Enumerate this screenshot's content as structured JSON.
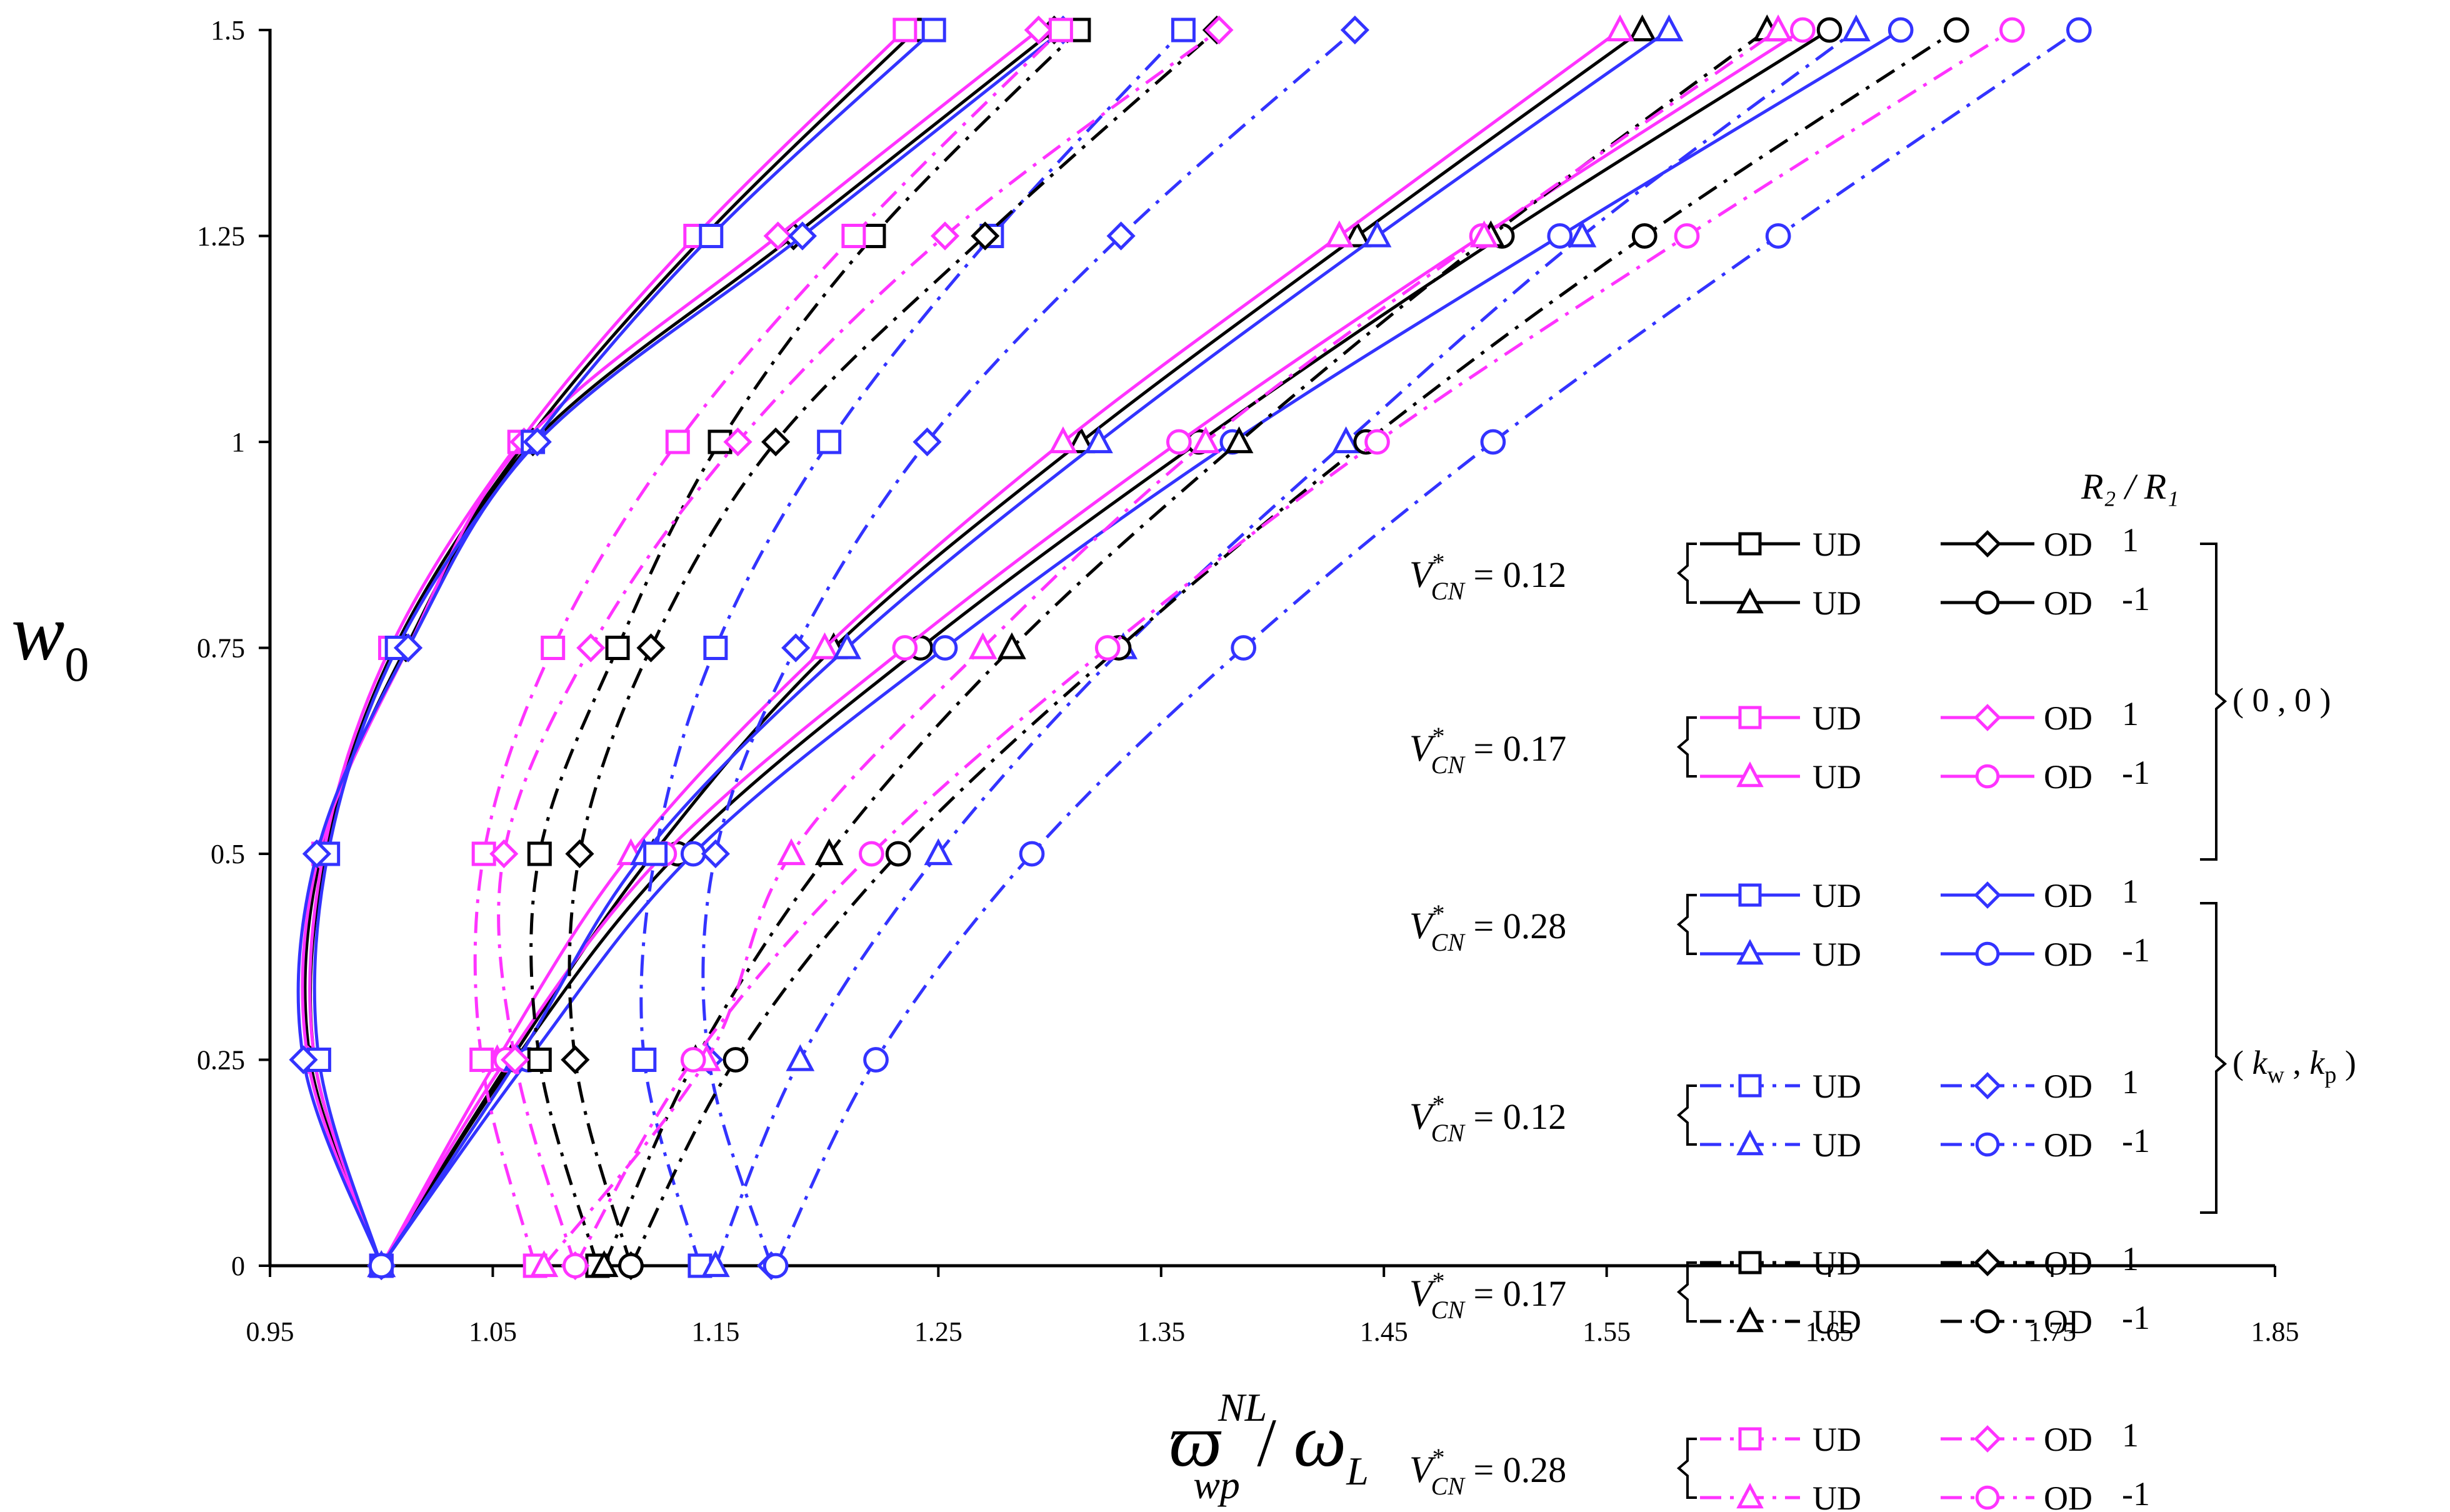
{
  "chart_data": {
    "type": "line",
    "xlabel": "ϖ_wp^NL / ω_L",
    "xlabel_parts": {
      "main": "ϖ",
      "sup": "NL",
      "sub": "wp",
      "sep": "/",
      "den": "ω",
      "den_sub": "L"
    },
    "ylabel": "w_0",
    "ylabel_parts": {
      "main": "w",
      "sub": "0"
    },
    "xlim": [
      0.95,
      1.85
    ],
    "ylim": [
      0,
      1.5
    ],
    "x_ticks": [
      "0.95",
      "1.05",
      "1.15",
      "1.25",
      "1.35",
      "1.45",
      "1.55",
      "1.65",
      "1.75",
      "1.85"
    ],
    "y_ticks": [
      "0",
      "0.25",
      "0.5",
      "0.75",
      "1",
      "1.25",
      "1.5"
    ],
    "y_values": [
      0,
      0.25,
      0.5,
      0.75,
      1.0,
      1.25,
      1.5
    ],
    "colors": {
      "black": "#000000",
      "magenta": "#ff33ff",
      "blue": "#3333ff"
    },
    "series": [
      {
        "name": "V*=0.12 UD R2/R1=1 (0,0)",
        "color": "black",
        "marker": "square",
        "dash": "solid",
        "x": [
          1.0,
          0.97,
          0.975,
          1.006,
          1.065,
          1.145,
          1.24
        ]
      },
      {
        "name": "V*=0.12 UD R2/R1=-1 (0,0)",
        "color": "black",
        "marker": "triangle",
        "dash": "solid",
        "x": [
          1.0,
          1.058,
          1.122,
          1.203,
          1.314,
          1.438,
          1.566
        ]
      },
      {
        "name": "V*=0.12 OD R2/R1=1 (0,0)",
        "color": "black",
        "marker": "diamond",
        "dash": "solid",
        "x": [
          1.0,
          0.968,
          0.973,
          1.011,
          1.068,
          1.185,
          1.302
        ]
      },
      {
        "name": "V*=0.12 OD R2/R1=-1 (0,0)",
        "color": "black",
        "marker": "circle",
        "dash": "solid",
        "x": [
          1.0,
          1.06,
          1.133,
          1.242,
          1.367,
          1.503,
          1.65
        ]
      },
      {
        "name": "V*=0.17 UD R2/R1=1 (0,0)",
        "color": "magenta",
        "marker": "square",
        "dash": "solid",
        "x": [
          1.0,
          0.97,
          0.974,
          1.004,
          1.062,
          1.141,
          1.235
        ]
      },
      {
        "name": "V*=0.17 UD R2/R1=-1 (0,0)",
        "color": "magenta",
        "marker": "triangle",
        "dash": "solid",
        "x": [
          1.0,
          1.052,
          1.112,
          1.199,
          1.306,
          1.43,
          1.556
        ]
      },
      {
        "name": "V*=0.17 OD R2/R1=1 (0,0)",
        "color": "magenta",
        "marker": "diamond",
        "dash": "solid",
        "x": [
          1.0,
          0.967,
          0.972,
          1.012,
          1.064,
          1.178,
          1.295
        ]
      },
      {
        "name": "V*=0.17 OD R2/R1=-1 (0,0)",
        "color": "magenta",
        "marker": "circle",
        "dash": "solid",
        "x": [
          1.0,
          1.056,
          1.127,
          1.235,
          1.358,
          1.494,
          1.638
        ]
      },
      {
        "name": "V*=0.28 UD R2/R1=1 (0,0)",
        "color": "blue",
        "marker": "square",
        "dash": "solid",
        "x": [
          1.0,
          0.972,
          0.976,
          1.007,
          1.068,
          1.148,
          1.248
        ]
      },
      {
        "name": "V*=0.28 UD R2/R1=-1 (0,0)",
        "color": "blue",
        "marker": "triangle",
        "dash": "solid",
        "x": [
          1.0,
          1.061,
          1.118,
          1.209,
          1.322,
          1.447,
          1.578
        ]
      },
      {
        "name": "V*=0.28 OD R2/R1=1 (0,0)",
        "color": "blue",
        "marker": "diamond",
        "dash": "solid",
        "x": [
          1.0,
          0.965,
          0.971,
          1.012,
          1.07,
          1.189,
          1.306
        ]
      },
      {
        "name": "V*=0.28 OD R2/R1=-1 (0,0)",
        "color": "blue",
        "marker": "circle",
        "dash": "solid",
        "x": [
          1.0,
          1.066,
          1.14,
          1.253,
          1.382,
          1.529,
          1.682
        ]
      },
      {
        "name": "V*=0.12 UD R2/R1=1 (kw,kp)",
        "color": "blue",
        "marker": "square",
        "dash": "dashdot",
        "x": [
          1.143,
          1.118,
          1.123,
          1.15,
          1.201,
          1.274,
          1.36
        ]
      },
      {
        "name": "V*=0.12 UD R2/R1=-1 (kw,kp)",
        "color": "blue",
        "marker": "triangle",
        "dash": "dashdot",
        "x": [
          1.15,
          1.188,
          1.25,
          1.333,
          1.433,
          1.539,
          1.662
        ]
      },
      {
        "name": "V*=0.12 OD R2/R1=1 (kw,kp)",
        "color": "blue",
        "marker": "diamond",
        "dash": "dashdot",
        "x": [
          1.175,
          1.147,
          1.15,
          1.186,
          1.245,
          1.332,
          1.437
        ]
      },
      {
        "name": "V*=0.12 OD R2/R1=-1 (kw,kp)",
        "color": "blue",
        "marker": "circle",
        "dash": "dashdot",
        "x": [
          1.177,
          1.222,
          1.292,
          1.387,
          1.499,
          1.627,
          1.762
        ]
      },
      {
        "name": "V*=0.17 UD R2/R1=1 (kw,kp)",
        "color": "black",
        "marker": "square",
        "dash": "dashdot",
        "x": [
          1.097,
          1.071,
          1.071,
          1.106,
          1.152,
          1.221,
          1.313
        ]
      },
      {
        "name": "V*=0.17 UD R2/R1=-1 (kw,kp)",
        "color": "black",
        "marker": "triangle",
        "dash": "dashdot",
        "x": [
          1.1,
          1.141,
          1.201,
          1.283,
          1.385,
          1.498,
          1.622
        ]
      },
      {
        "name": "V*=0.17 OD R2/R1=1 (kw,kp)",
        "color": "black",
        "marker": "diamond",
        "dash": "dashdot",
        "x": [
          1.112,
          1.087,
          1.089,
          1.121,
          1.177,
          1.271,
          1.375
        ]
      },
      {
        "name": "V*=0.17 OD R2/R1=-1 (kw,kp)",
        "color": "black",
        "marker": "circle",
        "dash": "dashdot",
        "x": [
          1.112,
          1.159,
          1.232,
          1.331,
          1.442,
          1.567,
          1.707
        ]
      },
      {
        "name": "V*=0.28 UD R2/R1=1 (kw,kp)",
        "color": "magenta",
        "marker": "square",
        "dash": "dashdot",
        "x": [
          1.069,
          1.045,
          1.046,
          1.077,
          1.133,
          1.212,
          1.305
        ]
      },
      {
        "name": "V*=0.28 UD R2/R1=-1 (kw,kp)",
        "color": "magenta",
        "marker": "triangle",
        "dash": "dashdot",
        "x": [
          1.073,
          1.146,
          1.184,
          1.27,
          1.37,
          1.495,
          1.627
        ]
      },
      {
        "name": "V*=0.28 OD R2/R1=1 (kw,kp)",
        "color": "magenta",
        "marker": "diamond",
        "dash": "dashdot",
        "x": [
          1.087,
          1.06,
          1.055,
          1.094,
          1.16,
          1.253,
          1.376
        ]
      },
      {
        "name": "V*=0.28 OD R2/R1=-1 (kw,kp)",
        "color": "magenta",
        "marker": "circle",
        "dash": "dashdot",
        "x": [
          1.087,
          1.14,
          1.22,
          1.326,
          1.447,
          1.586,
          1.732
        ]
      }
    ],
    "legend": {
      "header": "R₂ / R₁",
      "rows": [
        {
          "vlabel": "V*CN = 0.12",
          "color": "black",
          "dash": "solid",
          "ud": "UD",
          "od": "OD",
          "ratios": [
            "1",
            "-1"
          ]
        },
        {
          "vlabel": "V*CN = 0.17",
          "color": "magenta",
          "dash": "solid",
          "ud": "UD",
          "od": "OD",
          "ratios": [
            "1",
            "-1"
          ]
        },
        {
          "vlabel": "V*CN = 0.28",
          "color": "blue",
          "dash": "solid",
          "ud": "UD",
          "od": "OD",
          "ratios": [
            "1",
            "-1"
          ]
        },
        {
          "vlabel": "V*CN = 0.12",
          "color": "blue",
          "dash": "dashdot",
          "ud": "UD",
          "od": "OD",
          "ratios": [
            "1",
            "-1"
          ]
        },
        {
          "vlabel": "V*CN = 0.17",
          "color": "black",
          "dash": "dashdot",
          "ud": "UD",
          "od": "OD",
          "ratios": [
            "1",
            "-1"
          ]
        },
        {
          "vlabel": "V*CN = 0.28",
          "color": "magenta",
          "dash": "dashdot",
          "ud": "UD",
          "od": "OD",
          "ratios": [
            "1",
            "-1"
          ]
        }
      ],
      "group_labels": [
        "( 0 , 0 )",
        "( kw , kp )"
      ],
      "group_label_parts": [
        {
          "text": "( 0 , 0 )"
        },
        {
          "open": "( ",
          "a": "k",
          "a_sub": "w",
          "mid": " , ",
          "b": "k",
          "b_sub": "p",
          "close": " )"
        }
      ],
      "v_parts": {
        "v": "V",
        "star": "*",
        "sub": "CN",
        "eq": " = "
      },
      "v_values": [
        "0.12",
        "0.17",
        "0.28",
        "0.12",
        "0.17",
        "0.28"
      ]
    }
  }
}
